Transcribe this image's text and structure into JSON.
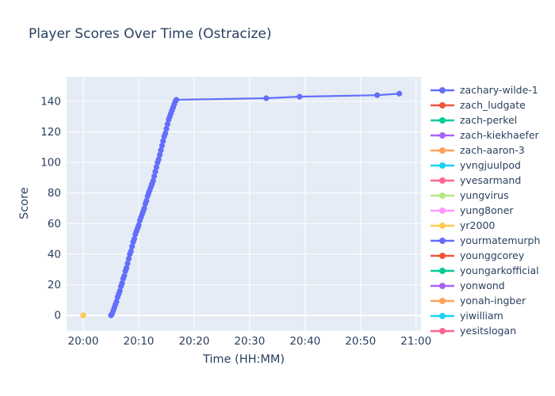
{
  "chart_data": {
    "type": "line",
    "title": "Player Scores Over Time (Ostracize)",
    "xlabel": "Time (HH:MM)",
    "ylabel": "Score",
    "plot_bg": "#E5ECF6",
    "grid": true,
    "grid_color": "#ffffff",
    "text_color": "#2a3f5f",
    "legend_position": "right",
    "x_axis": {
      "tick_labels": [
        "20:00",
        "20:10",
        "20:20",
        "20:30",
        "20:40",
        "20:50",
        "21:00"
      ],
      "tick_minutes": [
        0,
        10,
        20,
        30,
        40,
        50,
        60
      ],
      "unit": "minutes after 20:00",
      "range_minutes": [
        -3,
        60.9
      ]
    },
    "y_axis": {
      "ticks": [
        0,
        20,
        40,
        60,
        80,
        100,
        120,
        140
      ],
      "range": [
        -10,
        156
      ]
    },
    "legend": [
      {
        "label": "zachary-wilde-1",
        "color": "#636EFA"
      },
      {
        "label": "zach_ludgate",
        "color": "#EF553B"
      },
      {
        "label": "zach-perkel",
        "color": "#00CC96"
      },
      {
        "label": "zach-kiekhaefer",
        "color": "#AB63FA"
      },
      {
        "label": "zach-aaron-3",
        "color": "#FFA15A"
      },
      {
        "label": "yvngjuulpod",
        "color": "#19D3F3"
      },
      {
        "label": "yvesarmand",
        "color": "#FF6692"
      },
      {
        "label": "yungvirus",
        "color": "#B6E880"
      },
      {
        "label": "yung8oner",
        "color": "#FF97FF"
      },
      {
        "label": "yr2000",
        "color": "#FECB52"
      },
      {
        "label": "yourmatemurph",
        "color": "#636EFA"
      },
      {
        "label": "younggcorey",
        "color": "#EF553B"
      },
      {
        "label": "youngarkofficial",
        "color": "#00CC96"
      },
      {
        "label": "yonwond",
        "color": "#AB63FA"
      },
      {
        "label": "yonah-ingber",
        "color": "#FFA15A"
      },
      {
        "label": "yiwilliam",
        "color": "#19D3F3"
      },
      {
        "label": "yesitslogan",
        "color": "#FF6692"
      }
    ],
    "series": [
      {
        "name": "zach-aaron-3",
        "color": "#FFA15A",
        "points_min_score": [
          [
            0,
            0
          ]
        ]
      },
      {
        "name": "yr2000",
        "color": "#FECB52",
        "points_min_score": [
          [
            0,
            0
          ]
        ]
      },
      {
        "name": "zachary-wilde-1",
        "color": "#636EFA",
        "points_min_score": [
          [
            5.0,
            0
          ],
          [
            5.2,
            1
          ],
          [
            5.4,
            3
          ],
          [
            5.6,
            5
          ],
          [
            5.8,
            7
          ],
          [
            6.0,
            9
          ],
          [
            6.2,
            12
          ],
          [
            6.4,
            14
          ],
          [
            6.6,
            16
          ],
          [
            6.8,
            19
          ],
          [
            7.0,
            21
          ],
          [
            7.2,
            24
          ],
          [
            7.4,
            26
          ],
          [
            7.6,
            29
          ],
          [
            7.8,
            31
          ],
          [
            8.0,
            34
          ],
          [
            8.2,
            37
          ],
          [
            8.4,
            40
          ],
          [
            8.6,
            42
          ],
          [
            8.8,
            45
          ],
          [
            9.0,
            48
          ],
          [
            9.2,
            50
          ],
          [
            9.4,
            53
          ],
          [
            9.6,
            55
          ],
          [
            9.8,
            57
          ],
          [
            10.0,
            59
          ],
          [
            10.2,
            62
          ],
          [
            10.4,
            64
          ],
          [
            10.6,
            66
          ],
          [
            10.8,
            68
          ],
          [
            11.0,
            70
          ],
          [
            11.2,
            73
          ],
          [
            11.4,
            75
          ],
          [
            11.6,
            78
          ],
          [
            11.8,
            80
          ],
          [
            12.0,
            82
          ],
          [
            12.2,
            84
          ],
          [
            12.4,
            86
          ],
          [
            12.6,
            88
          ],
          [
            12.8,
            91
          ],
          [
            13.0,
            94
          ],
          [
            13.2,
            97
          ],
          [
            13.4,
            100
          ],
          [
            13.6,
            102
          ],
          [
            13.8,
            105
          ],
          [
            14.0,
            108
          ],
          [
            14.2,
            111
          ],
          [
            14.4,
            114
          ],
          [
            14.6,
            117
          ],
          [
            14.8,
            119
          ],
          [
            15.0,
            122
          ],
          [
            15.2,
            125
          ],
          [
            15.4,
            128
          ],
          [
            15.6,
            130
          ],
          [
            15.8,
            132
          ],
          [
            16.0,
            134
          ],
          [
            16.2,
            136
          ],
          [
            16.4,
            138
          ],
          [
            16.6,
            140
          ],
          [
            16.8,
            141
          ],
          [
            33,
            142
          ],
          [
            39,
            143
          ],
          [
            53,
            144
          ],
          [
            57,
            145
          ]
        ]
      }
    ]
  }
}
